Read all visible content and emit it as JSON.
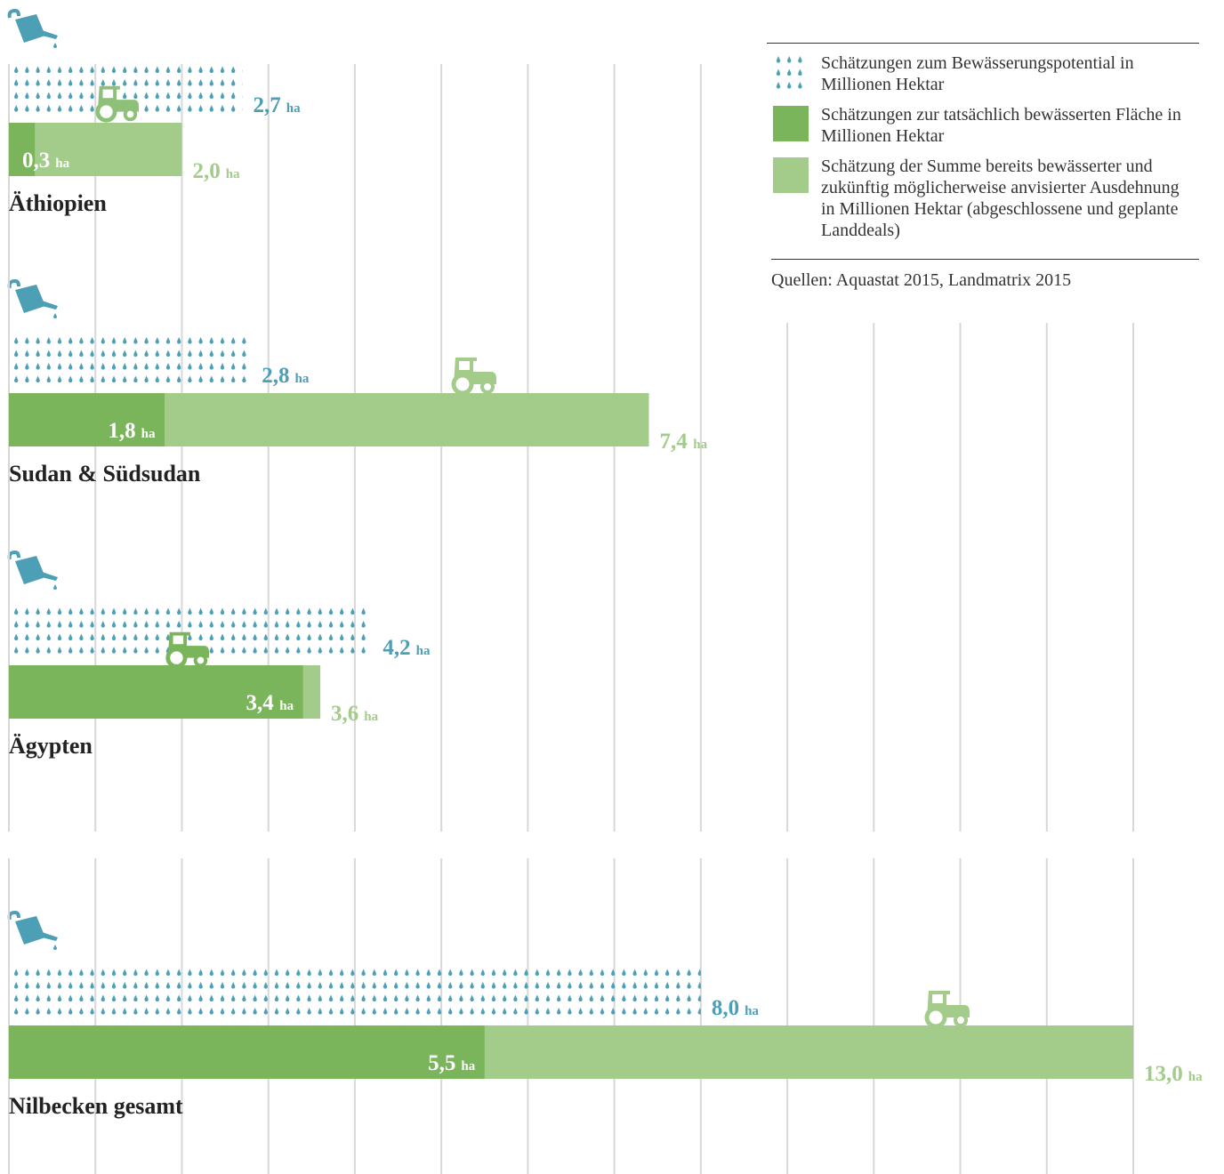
{
  "chart_data": {
    "type": "bar",
    "unit": "ha",
    "categories": [
      "Äthiopien",
      "Sudan & Südsudan",
      "Ägypten",
      "Nilbecken gesamt"
    ],
    "series": [
      {
        "name": "Schätzungen zum Bewässerungspotential in Millionen Hektar",
        "color": "#4d9fb6",
        "values": [
          2.7,
          2.8,
          4.2,
          8.0
        ],
        "value_labels": [
          "2,7",
          "2,8",
          "4,2",
          "8,0"
        ]
      },
      {
        "name": "Schätzungen zur tatsächlich bewässerten Fläche in Millionen Hektar",
        "color": "#7ab55c",
        "values": [
          0.3,
          1.8,
          3.4,
          5.5
        ],
        "value_labels": [
          "0,3",
          "1,8",
          "3,4",
          "5,5"
        ]
      },
      {
        "name": "Schätzung der Summe bereits bewässerter und zukünftig möglicherweise anvisierter Ausdehnung in Millionen Hektar (abgeschlossene und geplante Landdeals)",
        "color": "#a3cb8a",
        "values": [
          2.0,
          7.4,
          3.6,
          13.0
        ],
        "value_labels": [
          "2,0",
          "7,4",
          "3,6",
          "13,0"
        ]
      }
    ],
    "xlim": [
      0,
      13
    ],
    "xticks": [
      0,
      1,
      2,
      3,
      4,
      5,
      6,
      7,
      8,
      9,
      10,
      11,
      12,
      13
    ],
    "grid": true,
    "source": "Quellen: Aquastat 2015, Landmatrix 2015"
  }
}
